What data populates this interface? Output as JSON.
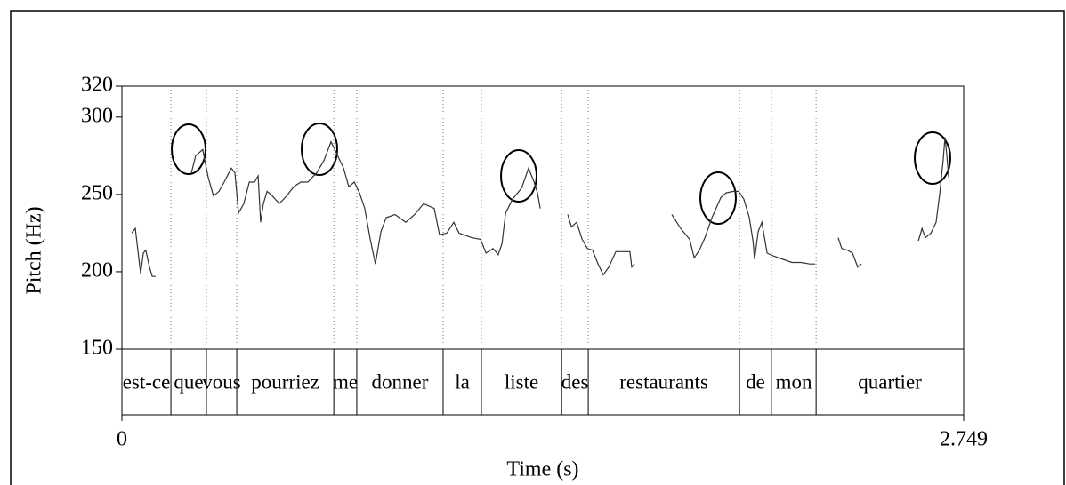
{
  "chart_data": {
    "type": "line",
    "xlabel": "Time (s)",
    "ylabel": "Pitch (Hz)",
    "xlim": [
      0,
      2.749
    ],
    "xticks": [
      0,
      2.749
    ],
    "ylim": [
      150,
      320
    ],
    "yticks": [
      150,
      200,
      250,
      300,
      320
    ],
    "color": "#333333",
    "words": [
      "est-ce",
      "que",
      "vous",
      "pourriez",
      "me",
      "donner",
      "la",
      "liste",
      "des",
      "restaurants",
      "de",
      "mon",
      "quartier"
    ],
    "boundaries": [
      0.16,
      0.276,
      0.375,
      0.692,
      0.767,
      1.049,
      1.174,
      1.436,
      1.523,
      2.017,
      2.121,
      2.267
    ],
    "x": [
      0.032,
      0.044,
      0.052,
      0.061,
      0.07,
      0.078,
      0.09,
      0.099,
      0.11,
      null,
      0.227,
      0.241,
      0.264,
      0.282,
      0.299,
      0.317,
      0.334,
      0.357,
      0.369,
      0.381,
      0.398,
      0.416,
      0.433,
      0.445,
      0.453,
      0.462,
      0.474,
      0.491,
      0.514,
      0.538,
      0.561,
      0.584,
      0.607,
      0.636,
      0.66,
      0.683,
      0.7,
      0.724,
      0.741,
      0.759,
      0.776,
      0.793,
      0.811,
      0.828,
      0.846,
      0.863,
      0.892,
      0.927,
      0.956,
      0.985,
      1.02,
      1.037,
      1.061,
      1.084,
      1.101,
      1.142,
      1.171,
      1.189,
      1.212,
      1.229,
      1.241,
      1.253,
      1.276,
      1.305,
      1.328,
      1.346,
      1.357,
      1.366,
      null,
      1.456,
      1.468,
      1.485,
      1.503,
      1.52,
      1.537,
      1.555,
      1.572,
      1.59,
      1.613,
      1.636,
      1.659,
      1.665,
      1.674,
      null,
      1.796,
      1.825,
      1.854,
      1.869,
      1.886,
      1.904,
      1.927,
      1.956,
      1.973,
      1.997,
      2.014,
      2.031,
      2.049,
      2.061,
      2.066,
      2.078,
      2.09,
      2.107,
      2.13,
      2.159,
      2.188,
      2.217,
      2.246,
      2.264,
      null,
      2.339,
      2.351,
      2.369,
      2.386,
      2.403,
      2.415,
      null,
      2.601,
      2.613,
      2.624,
      2.642,
      2.659,
      2.671,
      2.682,
      2.688,
      2.694,
      2.7
    ],
    "values": [
      225,
      228,
      214,
      199,
      212,
      214,
      203,
      197,
      197,
      null,
      264,
      275,
      279,
      261,
      249,
      252,
      258,
      267,
      264,
      238,
      244,
      258,
      258,
      262,
      232,
      244,
      252,
      249,
      244,
      249,
      255,
      258,
      258,
      264,
      272,
      284,
      277,
      267,
      255,
      258,
      251,
      241,
      221,
      205,
      226,
      235,
      237,
      232,
      237,
      244,
      241,
      224,
      225,
      232,
      225,
      222,
      221,
      212,
      215,
      211,
      218,
      238,
      247,
      254,
      267,
      258,
      251,
      241,
      null,
      237,
      229,
      232,
      221,
      215,
      214,
      205,
      198,
      203,
      213,
      213,
      213,
      203,
      205,
      null,
      237,
      228,
      221,
      209,
      214,
      222,
      235,
      248,
      251,
      252,
      252,
      247,
      235,
      220,
      208,
      226,
      232,
      212,
      210,
      208,
      206,
      206,
      205,
      205,
      null,
      222,
      215,
      214,
      212,
      203,
      205,
      null,
      220,
      228,
      222,
      225,
      232,
      251,
      272,
      287,
      275,
      261
    ]
  }
}
